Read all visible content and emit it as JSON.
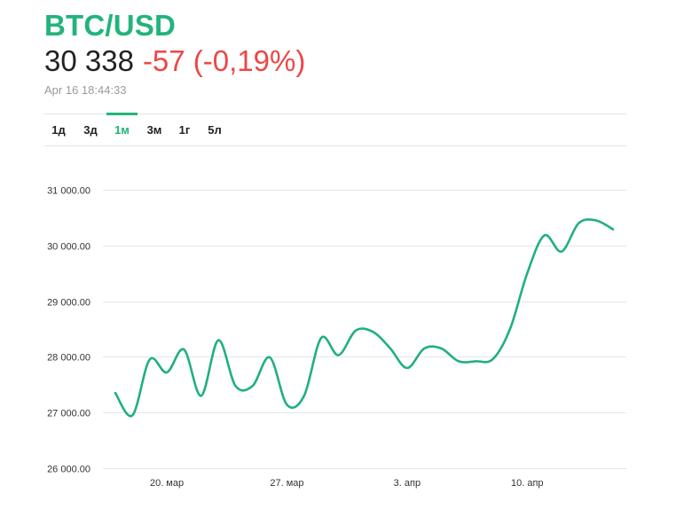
{
  "header": {
    "symbol": "BTC/USD",
    "price": "30 338",
    "change": "-57 (-0,19%)",
    "timestamp": "Apr 16 18:44:33"
  },
  "colors": {
    "accent": "#22b47a",
    "negative": "#ec4747",
    "line": "#21b07c",
    "grid": "#e5e5e5"
  },
  "period_tabs": {
    "items": [
      "1д",
      "3д",
      "1м",
      "3м",
      "1г",
      "5л"
    ],
    "active": "1м"
  },
  "chart_data": {
    "type": "line",
    "title": "",
    "xlabel": "",
    "ylabel": "",
    "grid": true,
    "ylim": [
      26000,
      31000
    ],
    "yticks": [
      {
        "value": 31000,
        "label": "31 000.00"
      },
      {
        "value": 30000,
        "label": "30 000.00"
      },
      {
        "value": 29000,
        "label": "29 000.00"
      },
      {
        "value": 28000,
        "label": "28 000.00"
      },
      {
        "value": 27000,
        "label": "27 000.00"
      },
      {
        "value": 26000,
        "label": "26 000.00"
      }
    ],
    "xlim": [
      "2023-03-17",
      "2023-04-16"
    ],
    "xticks": [
      {
        "date": "2023-03-20",
        "label": "20. мар"
      },
      {
        "date": "2023-03-27",
        "label": "27. мар"
      },
      {
        "date": "2023-04-03",
        "label": "3. апр"
      },
      {
        "date": "2023-04-10",
        "label": "10. апр"
      }
    ],
    "series": [
      {
        "values": [
          {
            "x": "2023-03-17",
            "y": 27350
          },
          {
            "x": "2023-03-18",
            "y": 26950
          },
          {
            "x": "2023-03-19",
            "y": 27950
          },
          {
            "x": "2023-03-20",
            "y": 27720
          },
          {
            "x": "2023-03-21",
            "y": 28130
          },
          {
            "x": "2023-03-22",
            "y": 27300
          },
          {
            "x": "2023-03-23",
            "y": 28300
          },
          {
            "x": "2023-03-24",
            "y": 27480
          },
          {
            "x": "2023-03-25",
            "y": 27480
          },
          {
            "x": "2023-03-26",
            "y": 27990
          },
          {
            "x": "2023-03-27",
            "y": 27140
          },
          {
            "x": "2023-03-28",
            "y": 27300
          },
          {
            "x": "2023-03-29",
            "y": 28340
          },
          {
            "x": "2023-03-30",
            "y": 28030
          },
          {
            "x": "2023-03-31",
            "y": 28470
          },
          {
            "x": "2023-04-01",
            "y": 28450
          },
          {
            "x": "2023-04-02",
            "y": 28160
          },
          {
            "x": "2023-04-03",
            "y": 27800
          },
          {
            "x": "2023-04-04",
            "y": 28150
          },
          {
            "x": "2023-04-05",
            "y": 28150
          },
          {
            "x": "2023-04-06",
            "y": 27920
          },
          {
            "x": "2023-04-07",
            "y": 27920
          },
          {
            "x": "2023-04-08",
            "y": 27960
          },
          {
            "x": "2023-04-09",
            "y": 28500
          },
          {
            "x": "2023-04-10",
            "y": 29500
          },
          {
            "x": "2023-04-11",
            "y": 30180
          },
          {
            "x": "2023-04-12",
            "y": 29890
          },
          {
            "x": "2023-04-13",
            "y": 30400
          },
          {
            "x": "2023-04-14",
            "y": 30450
          },
          {
            "x": "2023-04-15",
            "y": 30290
          }
        ]
      }
    ]
  }
}
